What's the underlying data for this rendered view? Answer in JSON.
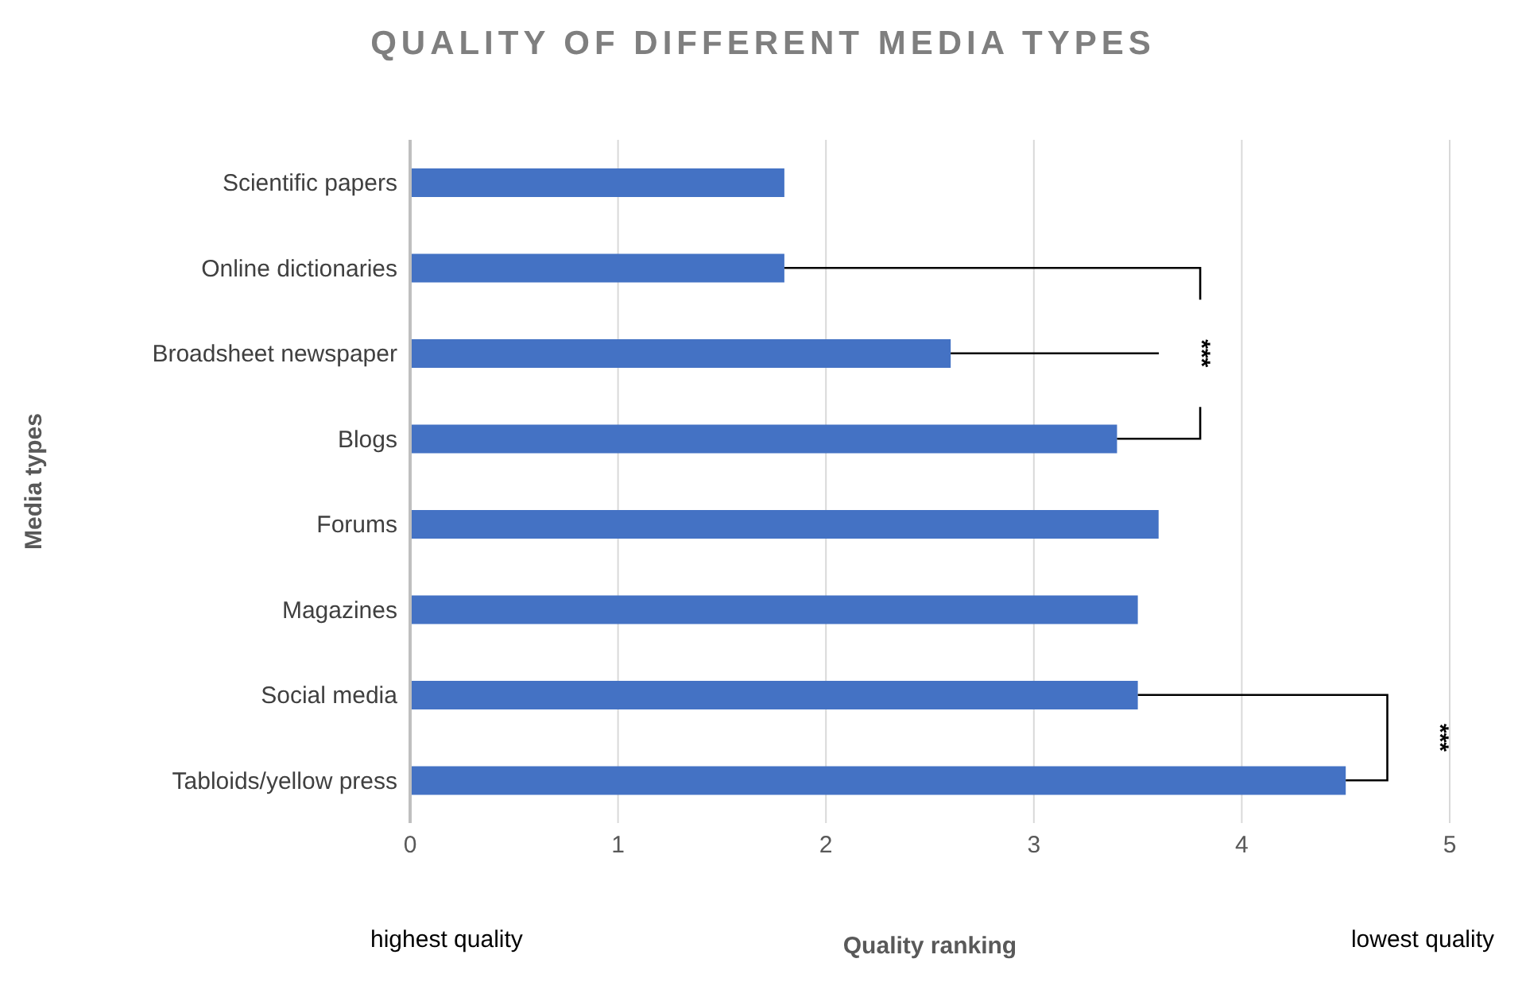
{
  "chart_data": {
    "type": "bar",
    "orientation": "horizontal",
    "title": "QUALITY OF DIFFERENT MEDIA TYPES",
    "xlabel": "Quality ranking",
    "ylabel": "Media types",
    "categories": [
      "Scientific papers",
      "Online dictionaries",
      "Broadsheet newspaper",
      "Blogs",
      "Forums",
      "Magazines",
      "Social media",
      "Tabloids/yellow press"
    ],
    "values": [
      1.8,
      1.8,
      2.6,
      3.4,
      3.6,
      3.5,
      3.5,
      4.5
    ],
    "color": "#4472c4",
    "xlim": [
      0,
      5
    ],
    "xticks": [
      0,
      1,
      2,
      3,
      4,
      5
    ],
    "grid": "x",
    "annotations": [
      {
        "text": "***",
        "x": 2.6,
        "y": "Broadsheet newspaper"
      },
      "***",
      "highest quality",
      "lowest quality"
    ]
  }
}
